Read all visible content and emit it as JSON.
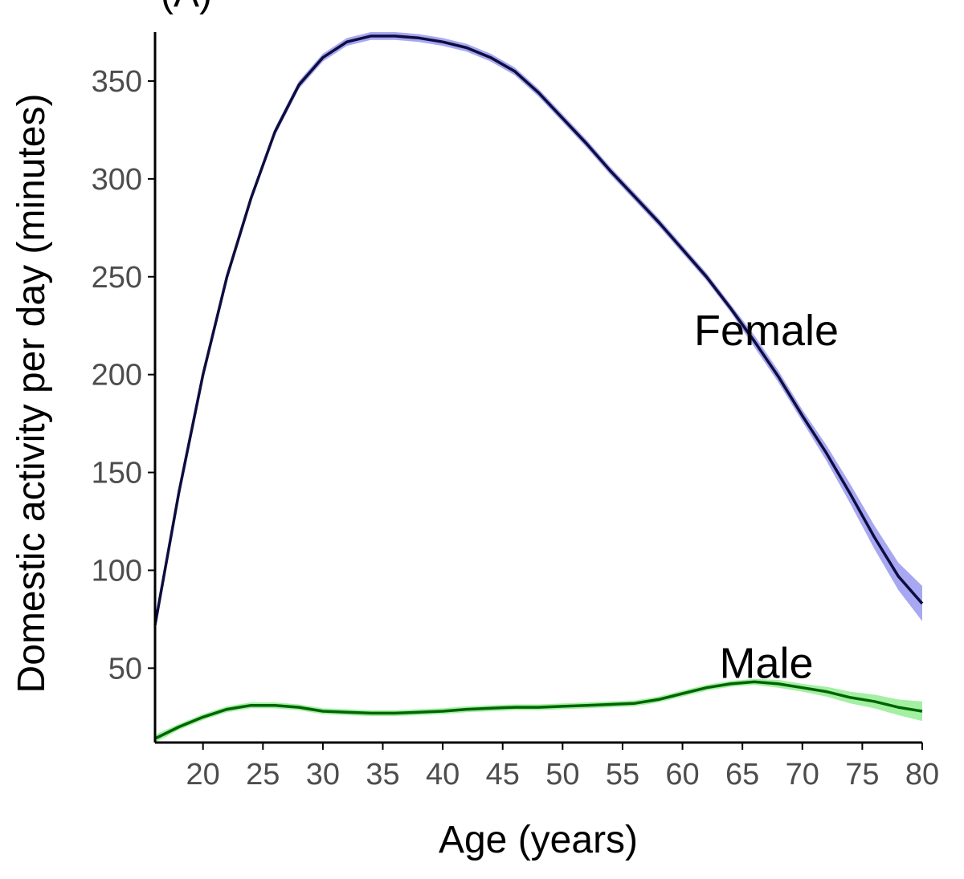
{
  "panel_tag": "(A)",
  "colors": {
    "female_line": "#0d0d40",
    "female_band": "#a7a7f2",
    "male_line": "#006400",
    "male_band": "#a3f0a3",
    "axis": "#000000",
    "tick_text": "#4d4d4d"
  },
  "chart_data": {
    "type": "line",
    "title": "",
    "xlabel": "Age (years)",
    "ylabel": "Domestic activity per day (minutes)",
    "xlim": [
      16,
      80
    ],
    "ylim": [
      12,
      375
    ],
    "x_ticks": [
      20,
      25,
      30,
      35,
      40,
      45,
      50,
      55,
      60,
      65,
      70,
      75,
      80
    ],
    "y_ticks": [
      50,
      100,
      150,
      200,
      250,
      300,
      350
    ],
    "grid": false,
    "legend": "none",
    "series": [
      {
        "name": "Female",
        "x": [
          16,
          18,
          20,
          22,
          24,
          26,
          28,
          30,
          32,
          34,
          36,
          38,
          40,
          42,
          44,
          46,
          48,
          50,
          52,
          54,
          56,
          58,
          60,
          62,
          64,
          66,
          68,
          70,
          72,
          74,
          76,
          78,
          80
        ],
        "y": [
          72,
          140,
          200,
          250,
          290,
          324,
          348,
          362,
          370,
          373,
          373,
          372,
          370,
          367,
          362,
          355,
          344,
          331,
          318,
          304,
          291,
          278,
          264,
          250,
          234,
          217,
          199,
          179,
          160,
          139,
          117,
          97,
          83
        ],
        "ci_halfwidth": [
          3,
          3,
          2,
          2,
          2,
          2,
          2,
          2,
          2,
          2,
          2,
          2,
          2,
          2,
          2,
          2,
          2,
          2,
          2,
          2,
          2,
          2,
          2,
          2,
          2,
          3,
          3,
          3,
          4,
          5,
          6,
          7,
          9
        ],
        "label": "Female",
        "label_at": [
          67,
          215
        ]
      },
      {
        "name": "Male",
        "x": [
          16,
          18,
          20,
          22,
          24,
          26,
          28,
          30,
          32,
          34,
          36,
          38,
          40,
          42,
          44,
          46,
          48,
          50,
          52,
          54,
          56,
          58,
          60,
          62,
          64,
          66,
          68,
          70,
          72,
          74,
          76,
          78,
          80
        ],
        "y": [
          14,
          20,
          25,
          29,
          31,
          31,
          30,
          28,
          27.5,
          27,
          27,
          27.5,
          28,
          29,
          29.5,
          30,
          30,
          30.5,
          31,
          31.5,
          32,
          34,
          37,
          40,
          42,
          43,
          42,
          40,
          38,
          35,
          33,
          30,
          28
        ],
        "ci_halfwidth": [
          2,
          1.5,
          1.5,
          1.5,
          1.5,
          1.5,
          1.5,
          1.5,
          1.5,
          1.5,
          1.5,
          1.5,
          1.5,
          1.5,
          1.5,
          1.5,
          1.5,
          1.5,
          1.5,
          1.5,
          1.5,
          1.5,
          1.5,
          1.5,
          1.5,
          1.5,
          2,
          2,
          2.5,
          3,
          3.5,
          4,
          5
        ],
        "label": "Male",
        "label_at": [
          67,
          45
        ]
      }
    ]
  }
}
